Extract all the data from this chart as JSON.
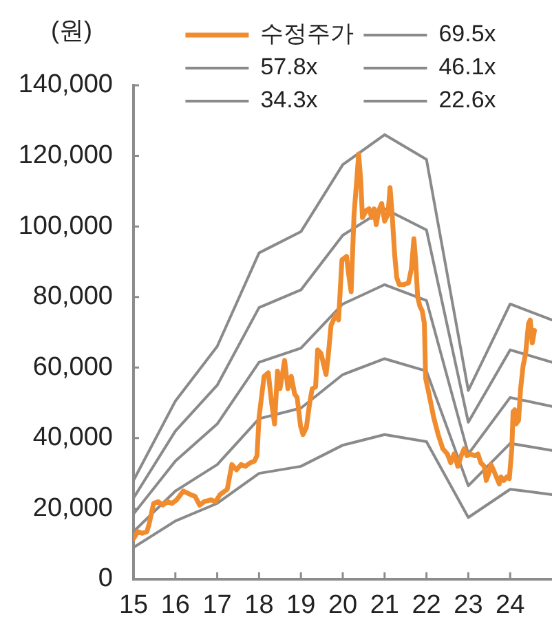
{
  "chart_data": {
    "type": "line",
    "ylabel": "(원)",
    "legend": "top",
    "marker": "none",
    "line_style": "solid",
    "xlim": [
      2015,
      2025
    ],
    "xticks": [
      {
        "value": 2015,
        "label": "15"
      },
      {
        "value": 2016,
        "label": "16"
      },
      {
        "value": 2017,
        "label": "17"
      },
      {
        "value": 2018,
        "label": "18"
      },
      {
        "value": 2019,
        "label": "19"
      },
      {
        "value": 2020,
        "label": "20"
      },
      {
        "value": 2021,
        "label": "21"
      },
      {
        "value": 2022,
        "label": "22"
      },
      {
        "value": 2023,
        "label": "23"
      },
      {
        "value": 2024,
        "label": "24"
      }
    ],
    "ylim": [
      0,
      140000
    ],
    "yticks": [
      0,
      {
        "value": 20000,
        "label": "20,000"
      },
      {
        "value": 40000,
        "label": "40,000"
      },
      {
        "value": 60000,
        "label": "60,000"
      },
      {
        "value": 80000,
        "label": "80,000"
      },
      {
        "value": 100000,
        "label": "100,000"
      },
      {
        "value": 120000,
        "label": "120,000"
      },
      {
        "value": 140000,
        "label": "140,000"
      }
    ],
    "x": [
      2015,
      2016,
      2017,
      2018,
      2019,
      2020,
      2021,
      2022,
      2023,
      2024,
      2025
    ],
    "series": [
      {
        "name": "수정주가",
        "color": "#f08c2e",
        "x": [
          2015,
          2015.1,
          2015.21,
          2015.32,
          2015.37,
          2015.48,
          2015.59,
          2015.7,
          2015.81,
          2015.92,
          2016.03,
          2016.19,
          2016.36,
          2016.47,
          2016.58,
          2016.69,
          2016.85,
          2016.96,
          2017.07,
          2017.24,
          2017.35,
          2017.46,
          2017.57,
          2017.67,
          2017.79,
          2017.89,
          2017.95,
          2018,
          2018.12,
          2018.22,
          2018.3,
          2018.37,
          2018.44,
          2018.5,
          2018.61,
          2018.69,
          2018.77,
          2018.85,
          2018.91,
          2018.99,
          2019.05,
          2019.13,
          2019.21,
          2019.27,
          2019.35,
          2019.4,
          2019.48,
          2019.6,
          2019.65,
          2019.72,
          2019.84,
          2019.9,
          2019.98,
          2020.09,
          2020.14,
          2020.2,
          2020.27,
          2020.34,
          2020.38,
          2020.43,
          2020.47,
          2020.56,
          2020.63,
          2020.69,
          2020.75,
          2020.8,
          2020.86,
          2020.93,
          2021,
          2021.08,
          2021.13,
          2021.18,
          2021.24,
          2021.29,
          2021.35,
          2021.46,
          2021.57,
          2021.64,
          2021.7,
          2021.74,
          2021.79,
          2021.84,
          2021.9,
          2021.95,
          2021.98,
          2022.06,
          2022.12,
          2022.17,
          2022.28,
          2022.39,
          2022.5,
          2022.58,
          2022.66,
          2022.75,
          2022.83,
          2022.9,
          2022.97,
          2023.05,
          2023.16,
          2023.23,
          2023.3,
          2023.38,
          2023.43,
          2023.49,
          2023.54,
          2023.6,
          2023.67,
          2023.74,
          2023.78,
          2023.85,
          2023.92,
          2023.98,
          2024.04,
          2024.07,
          2024.11,
          2024.14,
          2024.2,
          2024.25,
          2024.31,
          2024.37,
          2024.44,
          2024.48,
          2024.53,
          2024.58
        ],
        "values": [
          11500,
          13500,
          13000,
          13500,
          15500,
          21500,
          22000,
          21000,
          22000,
          21500,
          22500,
          25000,
          24000,
          23500,
          21000,
          22000,
          22500,
          22000,
          24000,
          25500,
          32500,
          31000,
          32500,
          32000,
          33000,
          33500,
          35000,
          46000,
          57500,
          58500,
          50000,
          44000,
          59000,
          54000,
          62000,
          54000,
          57500,
          52500,
          51500,
          43500,
          41000,
          43000,
          50000,
          54000,
          54500,
          65000,
          64000,
          58000,
          63000,
          72000,
          75000,
          73500,
          90500,
          91500,
          86500,
          81500,
          103500,
          114000,
          120500,
          113000,
          102500,
          104500,
          105000,
          102500,
          105000,
          100500,
          104500,
          106500,
          101500,
          103500,
          111000,
          103500,
          92000,
          85500,
          83500,
          83500,
          84000,
          88000,
          96500,
          90500,
          80000,
          77500,
          76000,
          72500,
          57000,
          52500,
          49000,
          46000,
          41000,
          37000,
          35500,
          33000,
          35500,
          32000,
          35000,
          37000,
          35000,
          35500,
          35000,
          35500,
          33000,
          32000,
          28000,
          30000,
          32500,
          31000,
          29000,
          27000,
          29000,
          28000,
          29000,
          28500,
          37000,
          47500,
          48000,
          44000,
          45000,
          54000,
          60500,
          64000,
          72500,
          73500,
          67000,
          70500
        ]
      },
      {
        "name": "69.5x",
        "color": "#8a8a8a",
        "values": [
          28000,
          50500,
          66000,
          92500,
          98500,
          117500,
          126000,
          119000,
          53500,
          78000,
          73500
        ]
      },
      {
        "name": "57.8x",
        "color": "#8a8a8a",
        "values": [
          23000,
          42000,
          55000,
          77000,
          82000,
          97500,
          105000,
          99000,
          44500,
          65000,
          61500
        ]
      },
      {
        "name": "46.1x",
        "color": "#8a8a8a",
        "values": [
          18500,
          33500,
          44000,
          61500,
          65500,
          78000,
          83500,
          79000,
          35500,
          51500,
          49000
        ]
      },
      {
        "name": "34.3x",
        "color": "#8a8a8a",
        "values": [
          13500,
          25000,
          32500,
          45500,
          48500,
          58000,
          62500,
          59000,
          26500,
          38500,
          36500
        ]
      },
      {
        "name": "22.6x",
        "color": "#8a8a8a",
        "values": [
          9000,
          16500,
          21500,
          30000,
          32000,
          38000,
          41000,
          39000,
          17500,
          25500,
          24000
        ]
      }
    ]
  }
}
